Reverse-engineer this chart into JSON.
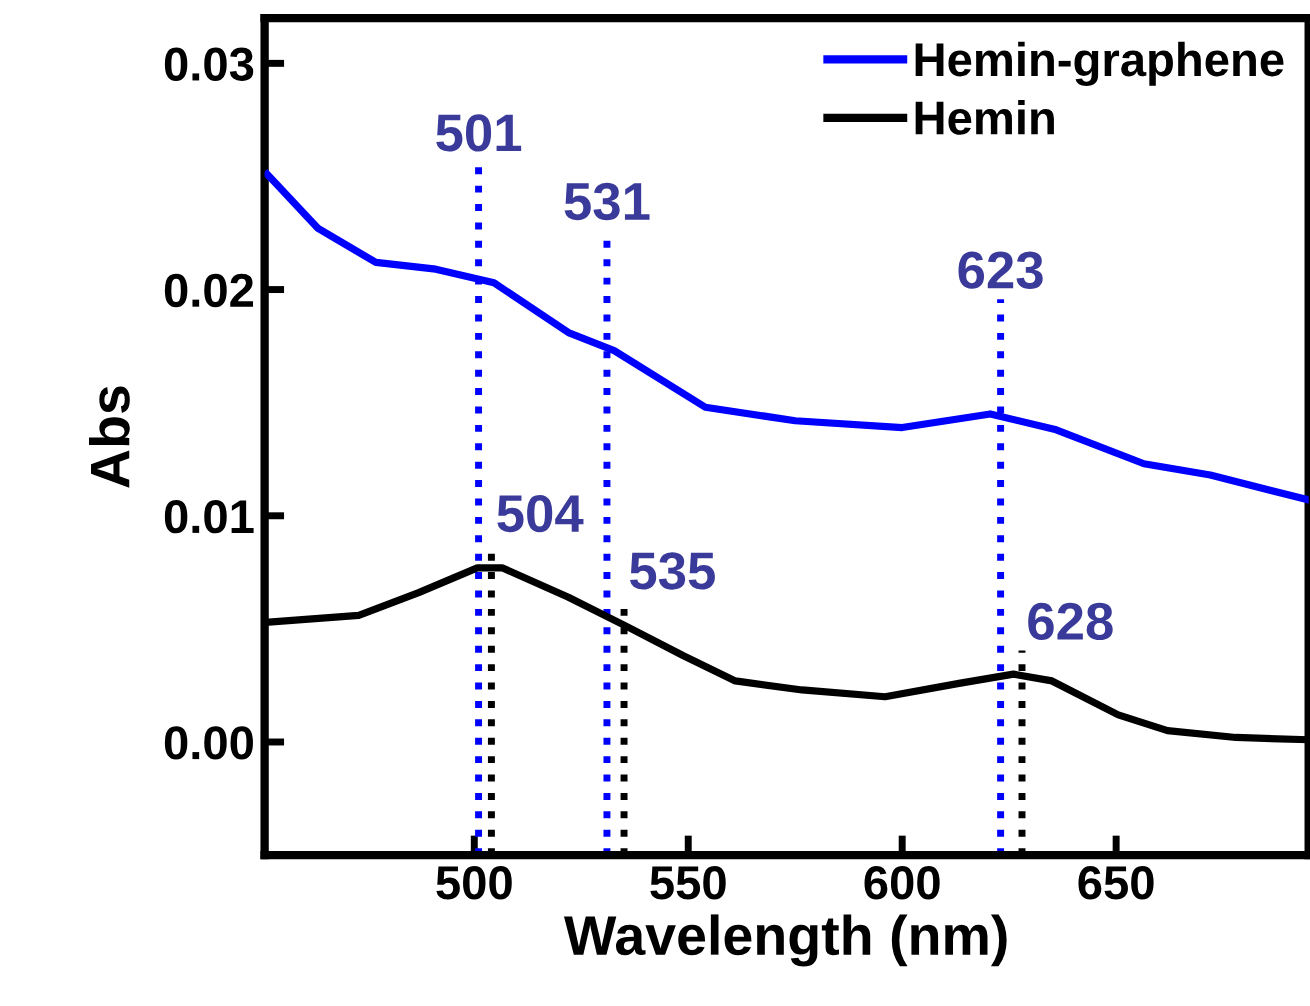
{
  "chart_data": {
    "type": "line",
    "xlabel": "Wavelength (nm)",
    "ylabel": "Abs",
    "xlim": [
      451,
      695
    ],
    "ylim": [
      -0.005,
      0.032
    ],
    "xticks": [
      500,
      550,
      600,
      650
    ],
    "yticks": [
      {
        "value": 0,
        "label": "0.00"
      },
      {
        "value": 0.01,
        "label": "0.01"
      },
      {
        "value": 0.02,
        "label": "0.02"
      },
      {
        "value": 0.03,
        "label": "0.03"
      }
    ],
    "legend": "top right",
    "grid": false,
    "line_style": "solid",
    "marker": "none",
    "series": [
      {
        "name": "Hemin-graphene",
        "color": "#0000ff",
        "x": [
          451.6,
          463.5,
          477,
          491,
          504.6,
          522,
          532.7,
          554,
          575,
          600,
          620.6,
          636,
          656.5,
          672,
          695
        ],
        "values": [
          0.0251,
          0.0227,
          0.0212,
          0.0209,
          0.0203,
          0.0181,
          0.0173,
          0.0148,
          0.0142,
          0.0139,
          0.0145,
          0.0138,
          0.0123,
          0.0118,
          0.0107
        ]
      },
      {
        "name": "Hemin",
        "color": "#000000",
        "x": [
          452,
          473,
          487,
          500.7,
          506.5,
          522,
          535.7,
          549,
          561,
          576.6,
          596,
          613.6,
          626,
          635,
          650.5,
          662,
          678,
          695
        ],
        "values": [
          0.0053,
          0.0056,
          0.0066,
          0.0077,
          0.0077,
          0.0064,
          0.0051,
          0.0038,
          0.0027,
          0.0023,
          0.002,
          0.0026,
          0.003,
          0.0027,
          0.0012,
          0.0005,
          0.0002,
          0.0001
        ]
      }
    ],
    "ref_lines": [
      {
        "axis": "x",
        "value": 501,
        "label": "501",
        "color": "#0000ff",
        "line_style": "dotted"
      },
      {
        "axis": "x",
        "value": 531,
        "label": "531",
        "color": "#0000ff",
        "line_style": "dotted"
      },
      {
        "axis": "x",
        "value": 623,
        "label": "623",
        "color": "#0000ff",
        "line_style": "dotted"
      },
      {
        "axis": "x",
        "value": 504,
        "label": "504",
        "color": "#000000",
        "line_style": "dotted"
      },
      {
        "axis": "x",
        "value": 535,
        "label": "535",
        "color": "#000000",
        "line_style": "dotted"
      },
      {
        "axis": "x",
        "value": 628,
        "label": "628",
        "color": "#000000",
        "line_style": "dotted"
      }
    ]
  }
}
